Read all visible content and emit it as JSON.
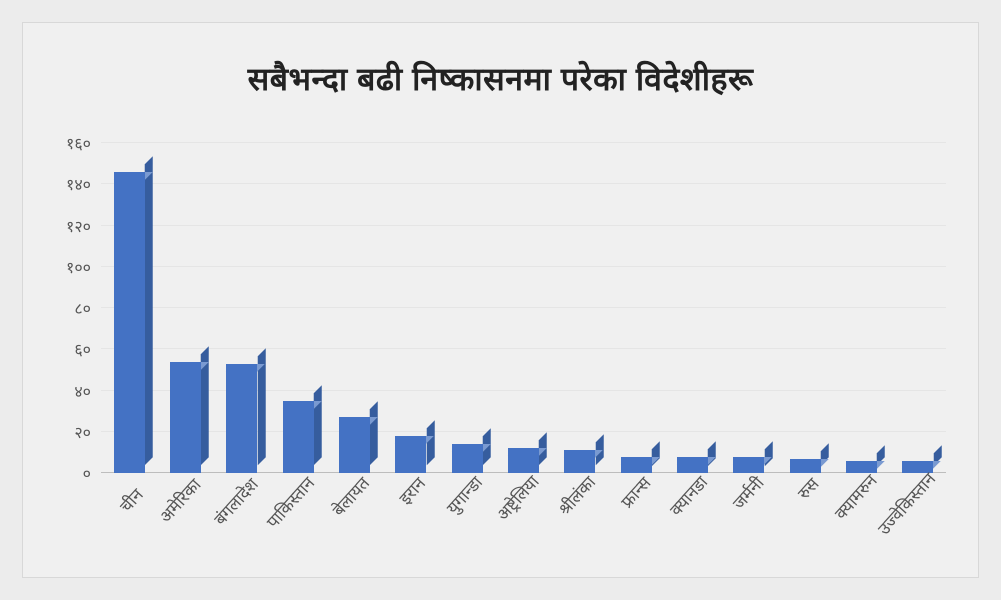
{
  "chart": {
    "type": "bar-3d",
    "title": "सबैभन्दा बढी निष्कासनमा परेका विदेशीहरू",
    "title_fontsize": 32,
    "title_color": "#222222",
    "background_color": "#f0f0f0",
    "page_background": "#ececec",
    "bar_front_color": "#4472c4",
    "bar_top_color": "#7a9ad1",
    "bar_side_color": "#365d9e",
    "grid_color": "#e5e5e5",
    "baseline_color": "#bdbdbd",
    "label_color": "#555555",
    "ylim": [
      0,
      160
    ],
    "ytick_step": 20,
    "yticks": [
      "०",
      "२०",
      "४०",
      "६०",
      "८०",
      "१००",
      "१२०",
      "१४०",
      "१६०"
    ],
    "categories": [
      "चीन",
      "अमेरिका",
      "बंगलादेश",
      "पाकिस्तान",
      "बेलायत",
      "इरान",
      "युगान्डा",
      "अष्ट्रेलिया",
      "श्रीलंका",
      "फ्रान्स",
      "क्यानडा",
      "जर्मनी",
      "रुस",
      "क्यामरुन",
      "उज्वेकिस्तान"
    ],
    "values": [
      146,
      54,
      53,
      35,
      27,
      18,
      14,
      12,
      11,
      8,
      8,
      8,
      7,
      6,
      6
    ],
    "bar_width_ratio": 0.55,
    "depth_ratio": 0.25,
    "label_fontsize": 17,
    "ytick_fontsize": 16,
    "xlabel_rotation": -48
  }
}
